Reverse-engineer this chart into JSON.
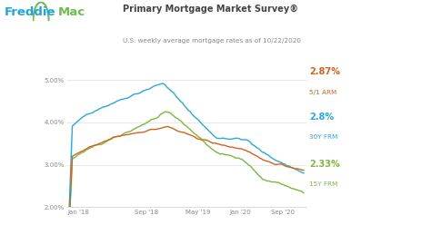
{
  "title": "Primary Mortgage Market Survey®",
  "subtitle": "U.S. weekly average mortgage rates as of 10/22/2020",
  "freddie_blue": "#1fa5db",
  "freddie_green": "#6CC04A",
  "bg_color": "#ffffff",
  "chart_bg": "#ffffff",
  "grid_color": "#e0e0e0",
  "line_30y_color": "#29a8e0",
  "line_15y_color": "#7cb83e",
  "line_arm_color": "#d4621e",
  "ylim": [
    2.0,
    5.3
  ],
  "ytick_labels": [
    "2.00%",
    "3.00%",
    "4.00%",
    "5.00%"
  ],
  "xtick_labels": [
    "Jan '18",
    "Sep '18",
    "May '19",
    "Jan '20",
    "Sep '20"
  ],
  "end_values": {
    "arm": {
      "value": "2.87%",
      "label": "5/1 ARM",
      "color": "#d4621e"
    },
    "frm30": {
      "value": "2.8%",
      "label": "30Y FRM",
      "color": "#29a8e0"
    },
    "frm15": {
      "value": "2.33%",
      "label": "15Y FRM",
      "color": "#7cb83e"
    }
  }
}
